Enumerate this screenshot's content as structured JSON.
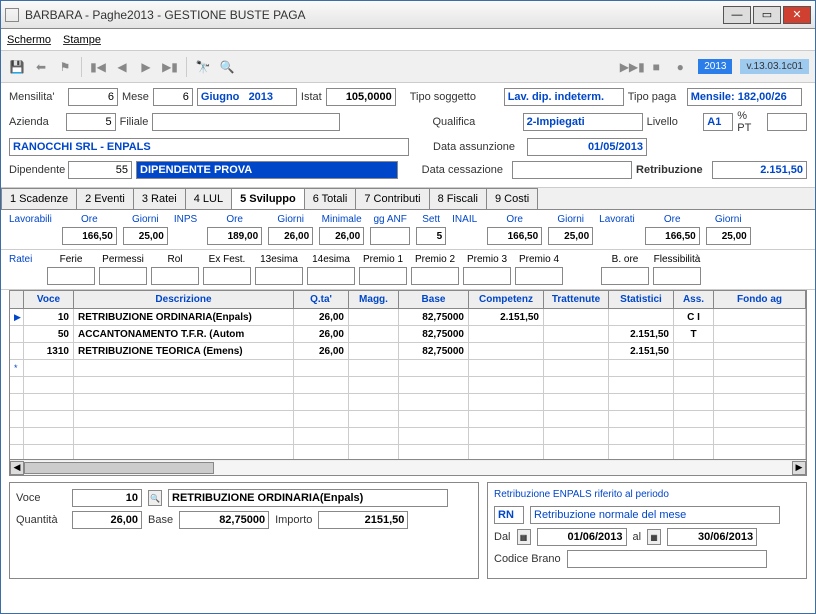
{
  "window": {
    "title": "BARBARA - Paghe2013 - GESTIONE BUSTE PAGA"
  },
  "menu": {
    "schermo": "Schermo",
    "stampe": "Stampe"
  },
  "toolbar": {
    "year": "2013",
    "version": "v.13.03.1c01"
  },
  "header": {
    "mensilita_lbl": "Mensilita'",
    "mensilita": "6",
    "mese_lbl": "Mese",
    "mese": "6",
    "mese_txt": "Giugno   2013",
    "istat_lbl": "Istat",
    "istat": "105,0000",
    "azienda_lbl": "Azienda",
    "azienda": "5",
    "filiale_lbl": "Filiale",
    "filiale": "",
    "azienda_name": "RANOCCHI SRL - ENPALS",
    "dipendente_lbl": "Dipendente",
    "dipendente": "55",
    "dipendente_name": "DIPENDENTE PROVA",
    "tipo_soggetto_lbl": "Tipo soggetto",
    "tipo_soggetto": "Lav. dip. indeterm.",
    "qualifica_lbl": "Qualifica",
    "qualifica": "2-Impiegati",
    "data_ass_lbl": "Data assunzione",
    "data_ass": "01/05/2013",
    "data_cess_lbl": "Data cessazione",
    "data_cess": "",
    "tipo_paga_lbl": "Tipo paga",
    "tipo_paga": "Mensile: 182,00/26",
    "livello_lbl": "Livello",
    "livello": "A1",
    "pt_lbl": "% PT",
    "pt": "",
    "retribuzione_lbl": "Retribuzione",
    "retribuzione": "2.151,50"
  },
  "tabs": [
    "1 Scadenze",
    "2 Eventi",
    "3 Ratei",
    "4 LUL",
    "5 Sviluppo",
    "6 Totali",
    "7 Contributi",
    "8 Fiscali",
    "9 Costi"
  ],
  "active_tab": 4,
  "lav": {
    "lavorabili": "Lavorabili",
    "ore": "Ore",
    "giorni": "Giorni",
    "lav_ore": "166,50",
    "lav_gg": "25,00",
    "inps": "INPS",
    "inps_ore": "189,00",
    "inps_gg": "26,00",
    "minimale": "Minimale",
    "min_val": "26,00",
    "gganf": "gg ANF",
    "sett": "Sett",
    "sett_val": "5",
    "inail": "INAIL",
    "inail_ore": "166,50",
    "inail_gg": "25,00",
    "lavorati": "Lavorati",
    "lvt_ore": "166,50",
    "lvt_gg": "25,00"
  },
  "ratei": {
    "title": "Ratei",
    "cols": [
      "Ferie",
      "Permessi",
      "Rol",
      "Ex Fest.",
      "13esima",
      "14esima",
      "Premio 1",
      "Premio 2",
      "Premio 3",
      "Premio 4",
      "B. ore",
      "Flessibilità"
    ]
  },
  "grid": {
    "headers": [
      "Voce",
      "Descrizione",
      "Q.ta'",
      "Magg.",
      "Base",
      "Competenz",
      "Trattenute",
      "Statistici",
      "Ass.",
      "Fondo ag"
    ],
    "rows": [
      {
        "mark": "▶",
        "voce": "10",
        "desc": "RETRIBUZIONE ORDINARIA(Enpals)",
        "qta": "26,00",
        "magg": "",
        "base": "82,75000",
        "comp": "2.151,50",
        "tratt": "",
        "stat": "",
        "ass": "C I"
      },
      {
        "mark": "",
        "voce": "50",
        "desc": "ACCANTONAMENTO T.F.R. (Autom",
        "qta": "26,00",
        "magg": "",
        "base": "82,75000",
        "comp": "",
        "tratt": "",
        "stat": "2.151,50",
        "ass": "T"
      },
      {
        "mark": "",
        "voce": "1310",
        "desc": "RETRIBUZIONE TEORICA (Emens)",
        "qta": "26,00",
        "magg": "",
        "base": "82,75000",
        "comp": "",
        "tratt": "",
        "stat": "2.151,50",
        "ass": ""
      },
      {
        "mark": "*",
        "voce": "",
        "desc": "",
        "qta": "",
        "magg": "",
        "base": "",
        "comp": "",
        "tratt": "",
        "stat": "",
        "ass": ""
      }
    ]
  },
  "bottom": {
    "voce_lbl": "Voce",
    "voce": "10",
    "voce_desc": "RETRIBUZIONE ORDINARIA(Enpals)",
    "quantita_lbl": "Quantità",
    "quantita": "26,00",
    "base_lbl": "Base",
    "base": "82,75000",
    "importo_lbl": "Importo",
    "importo": "2151,50",
    "enp_title": "Retribuzione ENPALS riferito al periodo",
    "rn_lbl": "RN",
    "rn_desc": "Retribuzione normale del mese",
    "dal_lbl": "Dal",
    "dal": "01/06/2013",
    "al_lbl": "al",
    "al": "30/06/2013",
    "codice_lbl": "Codice Brano",
    "codice": ""
  }
}
